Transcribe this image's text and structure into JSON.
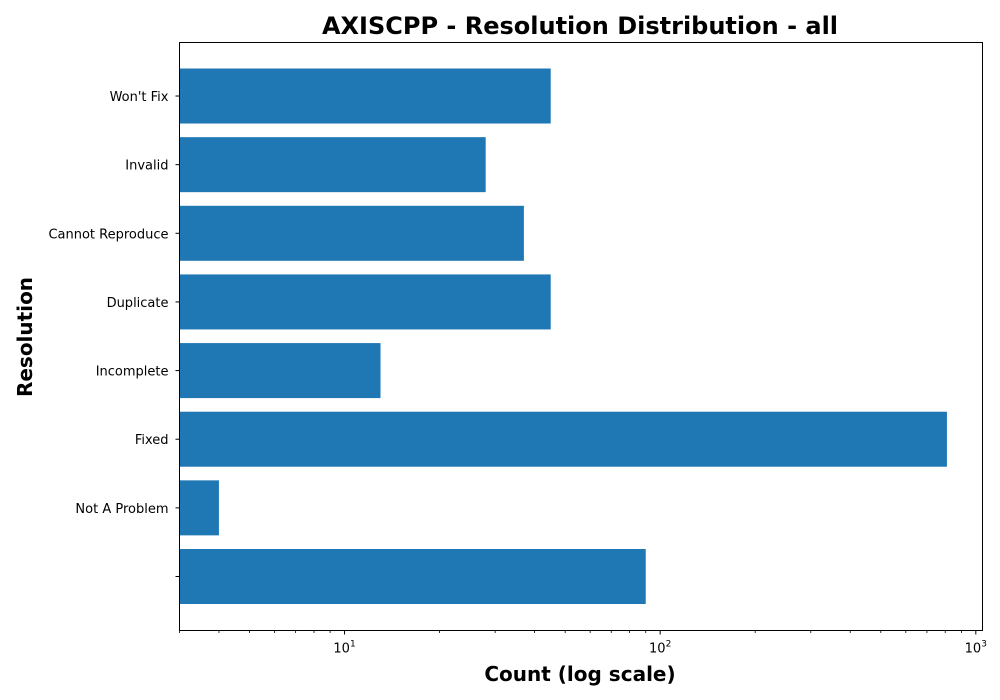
{
  "chart_data": {
    "type": "bar",
    "orientation": "horizontal",
    "title": "AXISCPP - Resolution Distribution - all",
    "xlabel": "Count (log scale)",
    "ylabel": "Resolution",
    "x_scale": "log",
    "xlim": [
      3,
      1050
    ],
    "x_ticks": [
      {
        "base": "10",
        "exp": "1",
        "value": 10
      },
      {
        "base": "10",
        "exp": "2",
        "value": 100
      },
      {
        "base": "10",
        "exp": "3",
        "value": 1000
      }
    ],
    "categories": [
      "",
      "Not A Problem",
      "Fixed",
      "Incomplete",
      "Duplicate",
      "Cannot Reproduce",
      "Invalid",
      "Won't Fix"
    ],
    "values": [
      90,
      4,
      810,
      13,
      45,
      37,
      28,
      45
    ],
    "bar_color": "#1f77b4",
    "grid": false
  }
}
